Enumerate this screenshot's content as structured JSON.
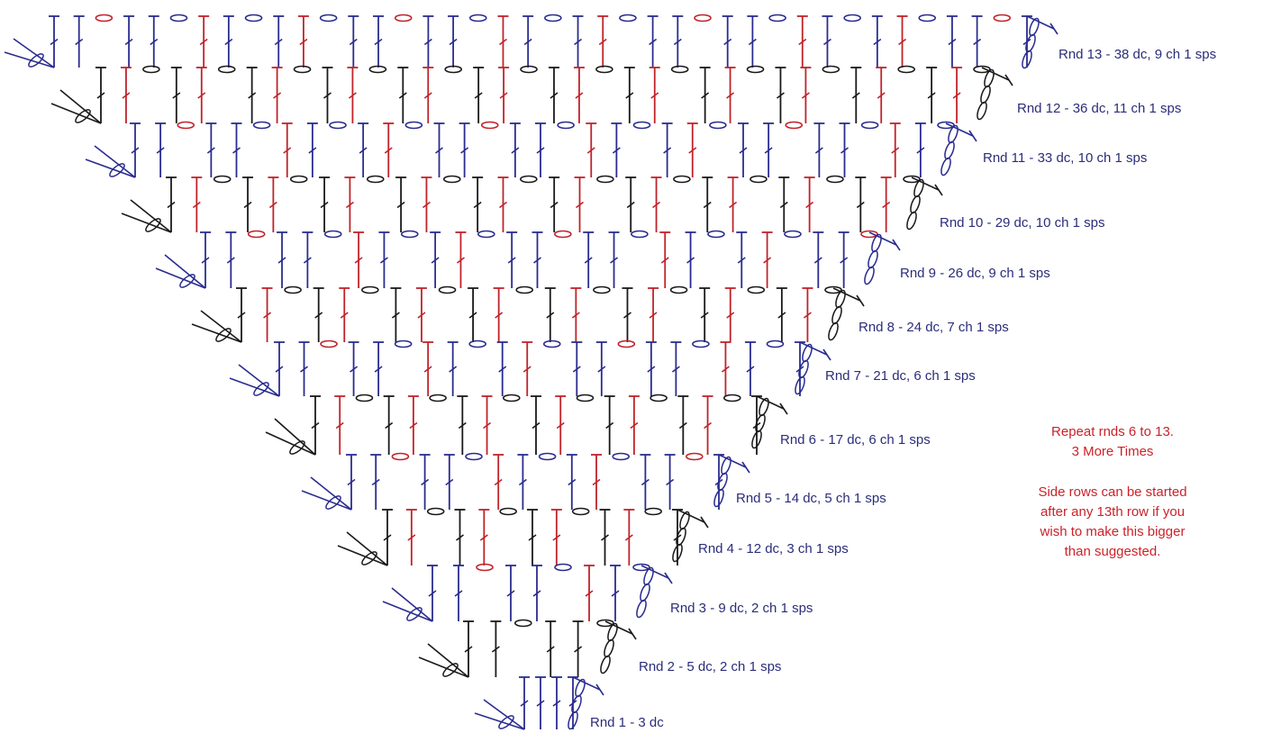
{
  "colors": {
    "blue": "#2a2c8f",
    "black": "#1a1a1a",
    "red": "#c0232a",
    "label": "#2b2d7a",
    "note": "#cc2229"
  },
  "rounds": [
    {
      "label": "Rnd 1 - 3 dc",
      "dc": 3,
      "ch1_spaces": 0,
      "color": "blue"
    },
    {
      "label": "Rnd 2 - 5 dc, 2 ch 1 sps",
      "dc": 5,
      "ch1_spaces": 2,
      "color": "black"
    },
    {
      "label": "Rnd 3 - 9 dc, 2 ch 1 sps",
      "dc": 9,
      "ch1_spaces": 2,
      "color": "blue"
    },
    {
      "label": "Rnd 4 - 12 dc, 3 ch 1 sps",
      "dc": 12,
      "ch1_spaces": 3,
      "color": "black"
    },
    {
      "label": "Rnd 5 - 14 dc, 5 ch 1 sps",
      "dc": 14,
      "ch1_spaces": 5,
      "color": "blue"
    },
    {
      "label": "Rnd 6 - 17 dc, 6 ch 1 sps",
      "dc": 17,
      "ch1_spaces": 6,
      "color": "black"
    },
    {
      "label": "Rnd 7 - 21 dc, 6 ch 1 sps",
      "dc": 21,
      "ch1_spaces": 6,
      "color": "blue"
    },
    {
      "label": "Rnd 8 - 24 dc, 7 ch 1 sps",
      "dc": 24,
      "ch1_spaces": 7,
      "color": "black"
    },
    {
      "label": "Rnd 9 - 26 dc, 9 ch 1 sps",
      "dc": 26,
      "ch1_spaces": 9,
      "color": "blue"
    },
    {
      "label": "Rnd 10 - 29 dc, 10 ch 1 sps",
      "dc": 29,
      "ch1_spaces": 10,
      "color": "black"
    },
    {
      "label": "Rnd 11 - 33 dc, 10 ch 1 sps",
      "dc": 33,
      "ch1_spaces": 10,
      "color": "blue"
    },
    {
      "label": "Rnd 12 - 36 dc, 11 ch 1 sps",
      "dc": 36,
      "ch1_spaces": 11,
      "color": "black"
    },
    {
      "label": "Rnd 13 - 38 dc, 9 ch 1 sps",
      "dc": 38,
      "ch1_spaces": 9,
      "color": "blue"
    }
  ],
  "note": {
    "lines": [
      "Repeat rnds 6 to 13.",
      "3 More Times",
      "",
      "Side rows can be started",
      "after any 13th row if you",
      "wish to make this bigger",
      "than suggested."
    ]
  }
}
